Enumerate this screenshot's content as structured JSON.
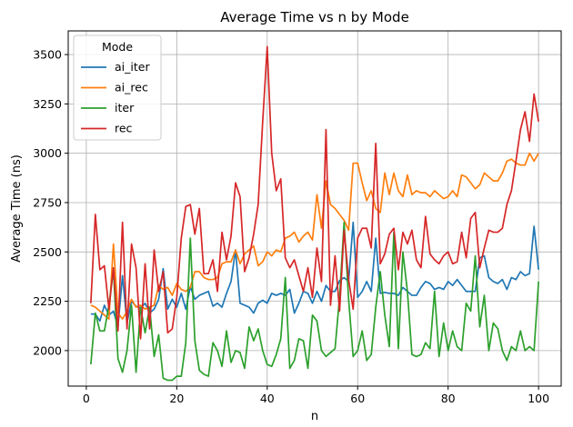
{
  "chart_data": {
    "type": "line",
    "title": "Average Time vs n by Mode",
    "xlabel": "n",
    "ylabel": "Average Time (ns)",
    "xlim": [
      -4,
      105
    ],
    "ylim": [
      1820,
      3620
    ],
    "xticks": [
      0,
      20,
      40,
      60,
      80,
      100
    ],
    "yticks": [
      2000,
      2250,
      2500,
      2750,
      3000,
      3250,
      3500
    ],
    "grid": true,
    "legend": {
      "title": "Mode",
      "placement": "upper-left"
    },
    "x": [
      1,
      2,
      3,
      4,
      5,
      6,
      7,
      8,
      9,
      10,
      11,
      12,
      13,
      14,
      15,
      16,
      17,
      18,
      19,
      20,
      21,
      22,
      23,
      24,
      25,
      26,
      27,
      28,
      29,
      30,
      31,
      32,
      33,
      34,
      35,
      36,
      37,
      38,
      39,
      40,
      41,
      42,
      43,
      44,
      45,
      46,
      47,
      48,
      49,
      50,
      51,
      52,
      53,
      54,
      55,
      56,
      57,
      58,
      59,
      60,
      61,
      62,
      63,
      64,
      65,
      66,
      67,
      68,
      69,
      70,
      71,
      72,
      73,
      74,
      75,
      76,
      77,
      78,
      79,
      80,
      81,
      82,
      83,
      84,
      85,
      86,
      87,
      88,
      89,
      90,
      91,
      92,
      93,
      94,
      95,
      96,
      97,
      98,
      99,
      100
    ],
    "series": [
      {
        "name": "ai_iter",
        "color": "#1f77b4",
        "values": [
          2185,
          2185,
          2150,
          2230,
          2180,
          2200,
          2120,
          2380,
          2140,
          2250,
          2225,
          2215,
          2240,
          2190,
          2210,
          2260,
          2415,
          2210,
          2260,
          2220,
          2290,
          2210,
          2325,
          2260,
          2280,
          2290,
          2300,
          2225,
          2240,
          2220,
          2290,
          2350,
          2510,
          2240,
          2230,
          2220,
          2190,
          2240,
          2255,
          2240,
          2290,
          2280,
          2290,
          2280,
          2310,
          2190,
          2240,
          2300,
          2290,
          2240,
          2300,
          2250,
          2330,
          2300,
          2300,
          2355,
          2370,
          2350,
          2650,
          2270,
          2300,
          2350,
          2300,
          2570,
          2290,
          2295,
          2290,
          2290,
          2280,
          2320,
          2300,
          2280,
          2280,
          2320,
          2350,
          2340,
          2310,
          2320,
          2310,
          2350,
          2330,
          2360,
          2330,
          2300,
          2300,
          2300,
          2470,
          2480,
          2370,
          2350,
          2340,
          2360,
          2310,
          2370,
          2360,
          2400,
          2380,
          2390,
          2630,
          2410
        ]
      },
      {
        "name": "ai_rec",
        "color": "#ff7f0e",
        "values": [
          2230,
          2220,
          2200,
          2180,
          2160,
          2540,
          2190,
          2160,
          2200,
          2260,
          2220,
          2230,
          2210,
          2220,
          2230,
          2330,
          2310,
          2320,
          2280,
          2340,
          2310,
          2300,
          2320,
          2400,
          2400,
          2370,
          2360,
          2360,
          2370,
          2440,
          2450,
          2450,
          2510,
          2440,
          2490,
          2510,
          2530,
          2430,
          2450,
          2500,
          2480,
          2510,
          2500,
          2570,
          2580,
          2600,
          2550,
          2580,
          2600,
          2560,
          2790,
          2620,
          2860,
          2740,
          2720,
          2690,
          2660,
          2610,
          2950,
          2950,
          2850,
          2760,
          2810,
          2720,
          2700,
          2900,
          2790,
          2900,
          2810,
          2780,
          2890,
          2790,
          2810,
          2800,
          2800,
          2780,
          2810,
          2790,
          2770,
          2780,
          2810,
          2780,
          2890,
          2880,
          2850,
          2820,
          2840,
          2900,
          2880,
          2860,
          2860,
          2900,
          2960,
          2970,
          2950,
          2940,
          2940,
          3000,
          2960,
          3000
        ]
      },
      {
        "name": "iter",
        "color": "#2ca02c",
        "values": [
          1930,
          2190,
          2100,
          2100,
          2230,
          2410,
          1960,
          1890,
          2000,
          2230,
          1890,
          2220,
          2090,
          2220,
          1970,
          2080,
          1860,
          1850,
          1850,
          1870,
          1870,
          2040,
          2570,
          2050,
          1900,
          1880,
          1870,
          2040,
          2000,
          1920,
          2100,
          1940,
          2000,
          1990,
          1910,
          2120,
          2050,
          2110,
          2000,
          1930,
          1920,
          1980,
          2060,
          2370,
          1910,
          1950,
          2060,
          2050,
          1910,
          2180,
          2150,
          2000,
          1970,
          1990,
          2010,
          2270,
          2650,
          2260,
          1970,
          2000,
          2100,
          1950,
          1980,
          2220,
          2400,
          2180,
          2020,
          2600,
          2010,
          2500,
          2300,
          1980,
          1970,
          1980,
          2040,
          2010,
          2300,
          1970,
          2140,
          2000,
          2100,
          2020,
          2000,
          2240,
          2200,
          2480,
          2120,
          2280,
          2000,
          2140,
          2110,
          2000,
          1950,
          2020,
          2000,
          2100,
          2000,
          2020,
          2000,
          2350
        ]
      },
      {
        "name": "rec",
        "color": "#d62728",
        "values": [
          2240,
          2690,
          2410,
          2430,
          2210,
          2420,
          2100,
          2650,
          2110,
          2540,
          2420,
          2060,
          2440,
          2110,
          2510,
          2300,
          2400,
          2090,
          2110,
          2270,
          2570,
          2730,
          2740,
          2590,
          2720,
          2390,
          2390,
          2460,
          2300,
          2600,
          2460,
          2580,
          2850,
          2780,
          2400,
          2470,
          2590,
          2740,
          3160,
          3540,
          3000,
          2810,
          2870,
          2470,
          2420,
          2460,
          2380,
          2300,
          2420,
          2270,
          2520,
          2350,
          3120,
          2230,
          2480,
          2200,
          2610,
          2360,
          2210,
          2570,
          2620,
          2620,
          2520,
          3050,
          2440,
          2490,
          2590,
          2620,
          2410,
          2600,
          2540,
          2610,
          2460,
          2420,
          2680,
          2490,
          2460,
          2440,
          2480,
          2500,
          2440,
          2450,
          2600,
          2470,
          2670,
          2700,
          2420,
          2520,
          2610,
          2600,
          2600,
          2620,
          2740,
          2810,
          2960,
          3120,
          3210,
          3060,
          3300,
          3160
        ]
      }
    ]
  }
}
